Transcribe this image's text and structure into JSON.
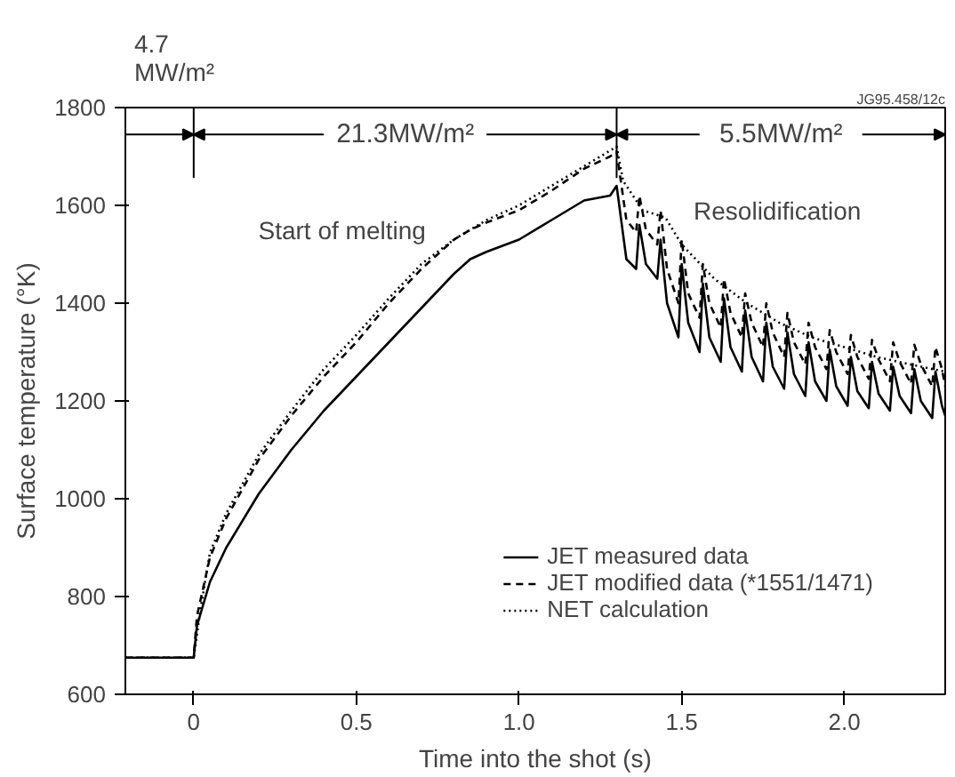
{
  "chart_data": {
    "type": "line",
    "xlabel": "Time into the shot (s)",
    "ylabel": "Surface temperature (°K)",
    "xlim": [
      -0.21,
      2.31
    ],
    "ylim": [
      600,
      1800
    ],
    "xticks": [
      0,
      0.5,
      {
        "value": 1,
        "label": "1.0"
      },
      1.5,
      {
        "value": 2,
        "label": "2.0"
      }
    ],
    "yticks": [
      600,
      800,
      1000,
      1200,
      1400,
      1600,
      1800
    ],
    "grid": false,
    "legend": "bottom right",
    "marker": "none",
    "series": [
      {
        "name": "JET measured data",
        "color": "#000000",
        "line_style": "solid",
        "x": [
          -0.21,
          0,
          0.01,
          0.05,
          0.1,
          0.2,
          0.3,
          0.4,
          0.5,
          0.6,
          0.7,
          0.8,
          0.85,
          0.9,
          1.0,
          1.1,
          1.2,
          1.28,
          1.3,
          1.33,
          1.36,
          1.37,
          1.39,
          1.425,
          1.435,
          1.455,
          1.49,
          1.5,
          1.52,
          1.555,
          1.565,
          1.585,
          1.62,
          1.63,
          1.65,
          1.685,
          1.695,
          1.715,
          1.75,
          1.76,
          1.78,
          1.815,
          1.825,
          1.845,
          1.88,
          1.89,
          1.91,
          1.945,
          1.955,
          1.975,
          2.01,
          2.02,
          2.04,
          2.075,
          2.085,
          2.105,
          2.14,
          2.15,
          2.17,
          2.205,
          2.215,
          2.235,
          2.27,
          2.28,
          2.3,
          2.31
        ],
        "values": [
          675,
          675,
          740,
          830,
          900,
          1010,
          1100,
          1180,
          1250,
          1320,
          1390,
          1460,
          1490,
          1505,
          1530,
          1570,
          1610,
          1620,
          1640,
          1490,
          1470,
          1560,
          1480,
          1450,
          1530,
          1400,
          1330,
          1480,
          1360,
          1300,
          1440,
          1330,
          1280,
          1410,
          1310,
          1260,
          1385,
          1290,
          1240,
          1360,
          1270,
          1225,
          1340,
          1255,
          1210,
          1320,
          1240,
          1200,
          1305,
          1230,
          1190,
          1290,
          1220,
          1185,
          1280,
          1215,
          1180,
          1270,
          1210,
          1175,
          1265,
          1200,
          1165,
          1260,
          1190,
          1170
        ]
      },
      {
        "name": "JET modified data (*1551/1471)",
        "color": "#000000",
        "line_style": "dashed",
        "x": [
          -0.21,
          0,
          0.01,
          0.05,
          0.1,
          0.2,
          0.3,
          0.4,
          0.5,
          0.6,
          0.7,
          0.8,
          0.85,
          0.9,
          1.0,
          1.1,
          1.2,
          1.28,
          1.3,
          1.33,
          1.36,
          1.37,
          1.39,
          1.425,
          1.435,
          1.455,
          1.49,
          1.5,
          1.52,
          1.555,
          1.565,
          1.585,
          1.62,
          1.63,
          1.65,
          1.685,
          1.695,
          1.715,
          1.75,
          1.76,
          1.78,
          1.815,
          1.825,
          1.845,
          1.88,
          1.89,
          1.91,
          1.945,
          1.955,
          1.975,
          2.01,
          2.02,
          2.04,
          2.075,
          2.085,
          2.105,
          2.14,
          2.15,
          2.17,
          2.205,
          2.215,
          2.235,
          2.27,
          2.28,
          2.3,
          2.31
        ],
        "values": [
          675,
          675,
          760,
          880,
          960,
          1080,
          1170,
          1250,
          1320,
          1400,
          1470,
          1530,
          1550,
          1565,
          1590,
          1630,
          1675,
          1700,
          1710,
          1570,
          1545,
          1620,
          1550,
          1520,
          1590,
          1470,
          1400,
          1530,
          1420,
          1370,
          1480,
          1400,
          1350,
          1450,
          1380,
          1330,
          1420,
          1360,
          1310,
          1400,
          1340,
          1290,
          1380,
          1320,
          1275,
          1360,
          1310,
          1265,
          1345,
          1300,
          1255,
          1335,
          1290,
          1245,
          1325,
          1285,
          1240,
          1320,
          1280,
          1235,
          1315,
          1275,
          1230,
          1310,
          1265,
          1230
        ]
      },
      {
        "name": "NET calculation",
        "color": "#000000",
        "line_style": "dotted",
        "x": [
          -0.21,
          0,
          0.02,
          0.05,
          0.1,
          0.2,
          0.3,
          0.4,
          0.5,
          0.6,
          0.7,
          0.8,
          0.85,
          0.9,
          1.0,
          1.1,
          1.2,
          1.3,
          1.32,
          1.38,
          1.45,
          1.5,
          1.6,
          1.7,
          1.8,
          1.9,
          2.0,
          2.1,
          2.2,
          2.31
        ],
        "values": [
          675,
          675,
          770,
          890,
          970,
          1090,
          1180,
          1265,
          1335,
          1410,
          1480,
          1530,
          1550,
          1570,
          1600,
          1640,
          1680,
          1720,
          1650,
          1590,
          1575,
          1520,
          1450,
          1400,
          1360,
          1330,
          1310,
          1290,
          1275,
          1260
        ]
      }
    ],
    "ref_lines": [
      {
        "axis": "x",
        "value": 0
      },
      {
        "axis": "x",
        "value": 1.3
      }
    ],
    "annotations": [
      "4.7\nMW/m²",
      "21.3MW/m²",
      "5.5MW/m²",
      {
        "text": "Start of melting",
        "x": 0.85,
        "y": 1550
      },
      {
        "text": "Resolidification",
        "x": 1.4,
        "y": 1590
      },
      "JG95.458/12c"
    ]
  }
}
